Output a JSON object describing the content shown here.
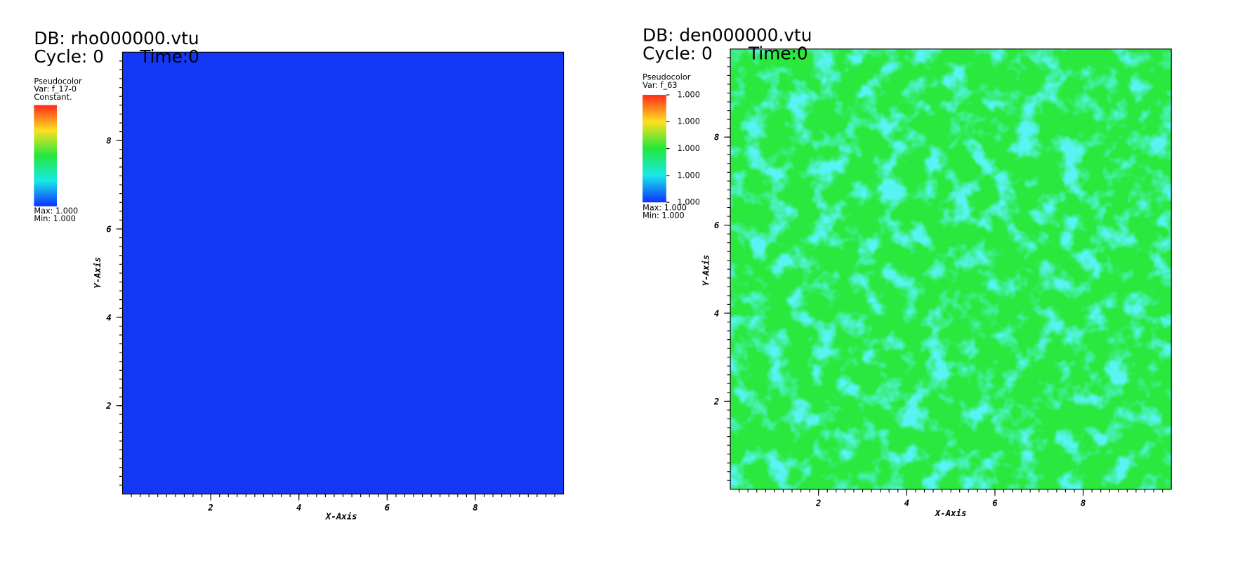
{
  "panels": [
    {
      "db": "DB: rho000000.vtu",
      "cycle": "Cycle: 0",
      "time": "Time:0",
      "legend": {
        "title": "Pseudocolor",
        "var": "Var: f_17-0",
        "note": "Constant.",
        "max": "Max:  1.000",
        "min": "Min:  1.000"
      },
      "xlabel": "X-Axis",
      "ylabel": "Y-Axis",
      "xlim": [
        0,
        10
      ],
      "ylim": [
        0,
        10
      ],
      "xticks": [
        2,
        4,
        6,
        8
      ],
      "yticks": [
        2,
        4,
        6,
        8
      ],
      "field_color": "#1437f5",
      "field_texture": false
    },
    {
      "db": "DB: den000000.vtu",
      "cycle": "Cycle: 0",
      "time": "Time:0",
      "legend": {
        "title": "Pseudocolor",
        "var": "Var: f_63",
        "colorbar_ticks": [
          "1.000",
          "1.000",
          "1.000",
          "1.000",
          "1.000"
        ],
        "max": "Max:  1.000",
        "min": "Min:  1.000"
      },
      "xlabel": "X-Axis",
      "ylabel": "Y-Axis",
      "xlim": [
        0,
        10
      ],
      "ylim": [
        0,
        10
      ],
      "xticks": [
        2,
        4,
        6,
        8
      ],
      "yticks": [
        2,
        4,
        6,
        8
      ],
      "field_color": "#2ae83e",
      "field_texture": true
    }
  ]
}
